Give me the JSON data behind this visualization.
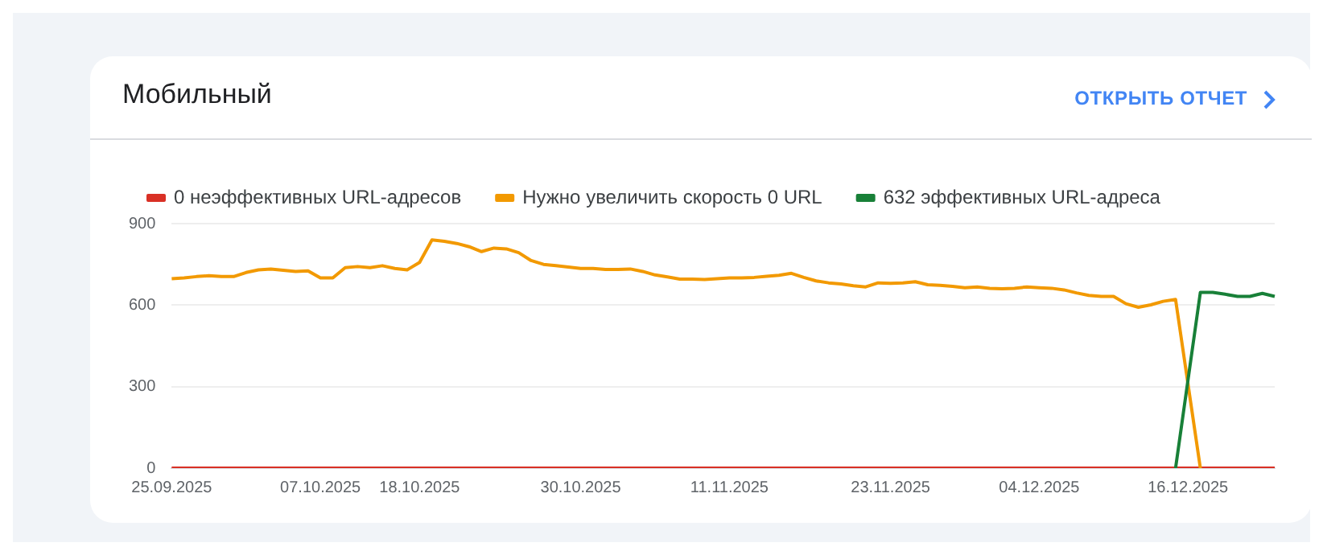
{
  "chart_data": {
    "type": "line",
    "title": "Мобильный",
    "annotations": [
      "ОТКРЫТЬ ОТЧЕТ"
    ],
    "categories": [
      "25.09.2025",
      null,
      null,
      null,
      null,
      null,
      null,
      null,
      null,
      null,
      null,
      null,
      "07.10.2025",
      null,
      null,
      null,
      null,
      null,
      null,
      null,
      "18.10.2025",
      null,
      null,
      null,
      null,
      null,
      null,
      null,
      null,
      null,
      null,
      null,
      null,
      "30.10.2025",
      null,
      null,
      null,
      null,
      null,
      null,
      null,
      null,
      null,
      null,
      null,
      "11.11.2025",
      null,
      null,
      null,
      null,
      null,
      null,
      null,
      null,
      null,
      null,
      null,
      null,
      "23.11.2025",
      null,
      null,
      null,
      null,
      null,
      null,
      null,
      null,
      null,
      null,
      null,
      "04.12.2025",
      null,
      null,
      null,
      null,
      null,
      null,
      null,
      null,
      null,
      null,
      null,
      "16.12.2025",
      null,
      null,
      null,
      null,
      null,
      null,
      null
    ],
    "series": [
      {
        "name": "0 неэффективных URL-адресов",
        "color": "#d93025",
        "values": [
          0,
          0,
          0,
          0,
          0,
          0,
          0,
          0,
          0,
          0,
          0,
          0,
          0,
          0,
          0,
          0,
          0,
          0,
          0,
          0,
          0,
          0,
          0,
          0,
          0,
          0,
          0,
          0,
          0,
          0,
          0,
          0,
          0,
          0,
          0,
          0,
          0,
          0,
          0,
          0,
          0,
          0,
          0,
          0,
          0,
          0,
          0,
          0,
          0,
          0,
          0,
          0,
          0,
          0,
          0,
          0,
          0,
          0,
          0,
          0,
          0,
          0,
          0,
          0,
          0,
          0,
          0,
          0,
          0,
          0,
          0,
          0,
          0,
          0,
          0,
          0,
          0,
          0,
          0,
          0,
          0,
          0,
          0,
          0,
          0,
          0,
          0,
          0,
          0,
          0
        ]
      },
      {
        "name": "Нужно увеличить скорость 0 URL",
        "color": "#f29900",
        "values": [
          697,
          700,
          705,
          708,
          705,
          705,
          720,
          730,
          733,
          728,
          724,
          726,
          700,
          700,
          738,
          742,
          738,
          745,
          735,
          730,
          757,
          840,
          835,
          827,
          815,
          797,
          810,
          807,
          793,
          764,
          750,
          745,
          740,
          735,
          735,
          731,
          731,
          733,
          724,
          711,
          704,
          696,
          696,
          694,
          697,
          700,
          700,
          702,
          706,
          710,
          717,
          702,
          689,
          682,
          678,
          671,
          667,
          682,
          680,
          682,
          686,
          675,
          673,
          669,
          664,
          667,
          662,
          660,
          662,
          667,
          664,
          662,
          656,
          645,
          636,
          632,
          632,
          605,
          592,
          601,
          614,
          621,
          null,
          0,
          null,
          null,
          null,
          null,
          null,
          null
        ]
      },
      {
        "name": "632 эффективных URL-адреса",
        "color": "#188038",
        "values": [
          null,
          null,
          null,
          null,
          null,
          null,
          null,
          null,
          null,
          null,
          null,
          null,
          null,
          null,
          null,
          null,
          null,
          null,
          null,
          null,
          null,
          null,
          null,
          null,
          null,
          null,
          null,
          null,
          null,
          null,
          null,
          null,
          null,
          null,
          null,
          null,
          null,
          null,
          null,
          null,
          null,
          null,
          null,
          null,
          null,
          null,
          null,
          null,
          null,
          null,
          null,
          null,
          null,
          null,
          null,
          null,
          null,
          null,
          null,
          null,
          null,
          null,
          null,
          null,
          null,
          null,
          null,
          null,
          null,
          null,
          null,
          null,
          null,
          null,
          null,
          null,
          null,
          null,
          null,
          null,
          null,
          0,
          null,
          647,
          647,
          640,
          632,
          632,
          643,
          632
        ]
      }
    ],
    "ylim": [
      0,
      900
    ],
    "yticks": [
      0,
      300,
      600,
      900
    ],
    "grid": "y",
    "legend": "top left",
    "marker": "none",
    "line_style": "solid"
  }
}
